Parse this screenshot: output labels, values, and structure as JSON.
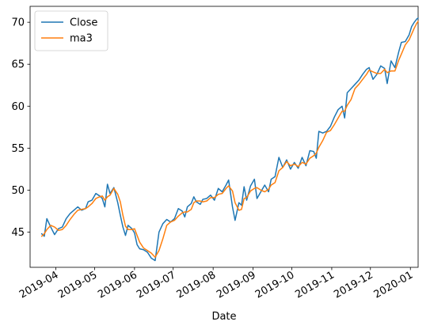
{
  "chart_data": {
    "type": "line",
    "title": "",
    "xlabel": "Date",
    "ylabel": "",
    "xlim": [
      "2019-03-12",
      "2020-01-07"
    ],
    "ylim": [
      40.8,
      71.9
    ],
    "yticks": [
      45,
      50,
      55,
      60,
      65,
      70
    ],
    "xticks": [
      {
        "date": "2019-04-01",
        "label": "2019-04"
      },
      {
        "date": "2019-05-01",
        "label": "2019-05"
      },
      {
        "date": "2019-06-01",
        "label": "2019-06"
      },
      {
        "date": "2019-07-01",
        "label": "2019-07"
      },
      {
        "date": "2019-08-01",
        "label": "2019-08"
      },
      {
        "date": "2019-09-01",
        "label": "2019-09"
      },
      {
        "date": "2019-10-01",
        "label": "2019-10"
      },
      {
        "date": "2019-11-01",
        "label": "2019-11"
      },
      {
        "date": "2019-12-01",
        "label": "2019-12"
      },
      {
        "date": "2020-01-01",
        "label": "2020-01"
      }
    ],
    "grid": false,
    "legend_position": "top-left",
    "series": [
      {
        "name": "Close",
        "color": "#1f77b4",
        "points": [
          [
            "2019-03-21",
            44.8
          ],
          [
            "2019-03-23",
            44.5
          ],
          [
            "2019-03-25",
            46.6
          ],
          [
            "2019-03-28",
            45.6
          ],
          [
            "2019-03-31",
            44.7
          ],
          [
            "2019-04-03",
            45.4
          ],
          [
            "2019-04-06",
            45.6
          ],
          [
            "2019-04-09",
            46.6
          ],
          [
            "2019-04-12",
            47.2
          ],
          [
            "2019-04-15",
            47.6
          ],
          [
            "2019-04-18",
            48.0
          ],
          [
            "2019-04-21",
            47.6
          ],
          [
            "2019-04-24",
            47.8
          ],
          [
            "2019-04-26",
            48.6
          ],
          [
            "2019-04-29",
            48.8
          ],
          [
            "2019-05-02",
            49.6
          ],
          [
            "2019-05-05",
            49.3
          ],
          [
            "2019-05-07",
            49.0
          ],
          [
            "2019-05-09",
            48.0
          ],
          [
            "2019-05-11",
            50.7
          ],
          [
            "2019-05-13",
            49.6
          ],
          [
            "2019-05-16",
            50.3
          ],
          [
            "2019-05-19",
            48.5
          ],
          [
            "2019-05-21",
            47.0
          ],
          [
            "2019-05-23",
            45.6
          ],
          [
            "2019-05-25",
            44.6
          ],
          [
            "2019-05-27",
            45.8
          ],
          [
            "2019-05-30",
            45.4
          ],
          [
            "2019-06-01",
            44.9
          ],
          [
            "2019-06-03",
            43.5
          ],
          [
            "2019-06-05",
            43.0
          ],
          [
            "2019-06-08",
            42.9
          ],
          [
            "2019-06-11",
            42.6
          ],
          [
            "2019-06-14",
            41.9
          ],
          [
            "2019-06-17",
            41.6
          ],
          [
            "2019-06-20",
            45.0
          ],
          [
            "2019-06-23",
            46.0
          ],
          [
            "2019-06-26",
            46.5
          ],
          [
            "2019-06-29",
            46.2
          ],
          [
            "2019-07-02",
            46.6
          ],
          [
            "2019-07-05",
            47.8
          ],
          [
            "2019-07-08",
            47.5
          ],
          [
            "2019-07-10",
            46.8
          ],
          [
            "2019-07-12",
            48.0
          ],
          [
            "2019-07-15",
            48.4
          ],
          [
            "2019-07-17",
            49.2
          ],
          [
            "2019-07-19",
            48.6
          ],
          [
            "2019-07-22",
            48.3
          ],
          [
            "2019-07-24",
            48.9
          ],
          [
            "2019-07-27",
            49.0
          ],
          [
            "2019-07-30",
            49.4
          ],
          [
            "2019-08-02",
            48.8
          ],
          [
            "2019-08-05",
            50.2
          ],
          [
            "2019-08-08",
            49.8
          ],
          [
            "2019-08-11",
            50.6
          ],
          [
            "2019-08-13",
            51.2
          ],
          [
            "2019-08-16",
            48.0
          ],
          [
            "2019-08-18",
            46.4
          ],
          [
            "2019-08-21",
            48.5
          ],
          [
            "2019-08-23",
            48.2
          ],
          [
            "2019-08-25",
            50.4
          ],
          [
            "2019-08-27",
            48.8
          ],
          [
            "2019-08-30",
            50.5
          ],
          [
            "2019-09-02",
            51.3
          ],
          [
            "2019-09-04",
            49.0
          ],
          [
            "2019-09-07",
            49.8
          ],
          [
            "2019-09-10",
            50.6
          ],
          [
            "2019-09-13",
            49.8
          ],
          [
            "2019-09-15",
            51.3
          ],
          [
            "2019-09-18",
            51.6
          ],
          [
            "2019-09-21",
            53.9
          ],
          [
            "2019-09-24",
            52.7
          ],
          [
            "2019-09-27",
            53.6
          ],
          [
            "2019-09-30",
            52.5
          ],
          [
            "2019-10-03",
            53.3
          ],
          [
            "2019-10-06",
            52.6
          ],
          [
            "2019-10-09",
            53.9
          ],
          [
            "2019-10-12",
            52.9
          ],
          [
            "2019-10-15",
            54.7
          ],
          [
            "2019-10-18",
            54.6
          ],
          [
            "2019-10-20",
            53.8
          ],
          [
            "2019-10-22",
            57.0
          ],
          [
            "2019-10-25",
            56.8
          ],
          [
            "2019-10-28",
            57.0
          ],
          [
            "2019-10-31",
            57.6
          ],
          [
            "2019-11-03",
            58.7
          ],
          [
            "2019-11-06",
            59.6
          ],
          [
            "2019-11-09",
            60.0
          ],
          [
            "2019-11-11",
            58.6
          ],
          [
            "2019-11-13",
            61.6
          ],
          [
            "2019-11-16",
            62.1
          ],
          [
            "2019-11-19",
            62.6
          ],
          [
            "2019-11-22",
            63.1
          ],
          [
            "2019-11-25",
            63.8
          ],
          [
            "2019-11-28",
            64.4
          ],
          [
            "2019-11-30",
            64.6
          ],
          [
            "2019-12-03",
            63.2
          ],
          [
            "2019-12-06",
            63.8
          ],
          [
            "2019-12-09",
            64.8
          ],
          [
            "2019-12-12",
            64.5
          ],
          [
            "2019-12-14",
            62.7
          ],
          [
            "2019-12-17",
            65.4
          ],
          [
            "2019-12-20",
            64.6
          ],
          [
            "2019-12-23",
            66.5
          ],
          [
            "2019-12-25",
            67.6
          ],
          [
            "2019-12-28",
            67.7
          ],
          [
            "2019-12-31",
            68.5
          ],
          [
            "2020-01-02",
            69.5
          ],
          [
            "2020-01-04",
            70.0
          ],
          [
            "2020-01-06",
            70.4
          ],
          [
            "2020-01-07",
            70.5
          ]
        ]
      },
      {
        "name": "ma3",
        "color": "#ff7f0e",
        "points": [
          [
            "2019-03-21",
            44.5
          ],
          [
            "2019-03-23",
            44.8
          ],
          [
            "2019-03-25",
            45.3
          ],
          [
            "2019-03-28",
            45.8
          ],
          [
            "2019-03-31",
            45.6
          ],
          [
            "2019-04-03",
            45.2
          ],
          [
            "2019-04-06",
            45.3
          ],
          [
            "2019-04-09",
            45.8
          ],
          [
            "2019-04-12",
            46.5
          ],
          [
            "2019-04-15",
            47.1
          ],
          [
            "2019-04-18",
            47.6
          ],
          [
            "2019-04-21",
            47.7
          ],
          [
            "2019-04-24",
            47.8
          ],
          [
            "2019-04-26",
            48.0
          ],
          [
            "2019-04-29",
            48.4
          ],
          [
            "2019-05-02",
            49.0
          ],
          [
            "2019-05-05",
            49.2
          ],
          [
            "2019-05-07",
            49.3
          ],
          [
            "2019-05-09",
            48.8
          ],
          [
            "2019-05-11",
            49.2
          ],
          [
            "2019-05-13",
            49.4
          ],
          [
            "2019-05-16",
            50.2
          ],
          [
            "2019-05-19",
            49.5
          ],
          [
            "2019-05-21",
            48.6
          ],
          [
            "2019-05-23",
            47.0
          ],
          [
            "2019-05-25",
            45.7
          ],
          [
            "2019-05-27",
            45.3
          ],
          [
            "2019-05-30",
            45.3
          ],
          [
            "2019-06-01",
            45.4
          ],
          [
            "2019-06-03",
            44.6
          ],
          [
            "2019-06-05",
            43.8
          ],
          [
            "2019-06-08",
            43.1
          ],
          [
            "2019-06-11",
            42.8
          ],
          [
            "2019-06-14",
            42.5
          ],
          [
            "2019-06-17",
            42.0
          ],
          [
            "2019-06-20",
            42.8
          ],
          [
            "2019-06-23",
            44.2
          ],
          [
            "2019-06-26",
            45.8
          ],
          [
            "2019-06-29",
            46.2
          ],
          [
            "2019-07-02",
            46.4
          ],
          [
            "2019-07-05",
            46.9
          ],
          [
            "2019-07-08",
            47.3
          ],
          [
            "2019-07-10",
            47.4
          ],
          [
            "2019-07-12",
            47.4
          ],
          [
            "2019-07-15",
            47.7
          ],
          [
            "2019-07-17",
            48.5
          ],
          [
            "2019-07-19",
            48.7
          ],
          [
            "2019-07-22",
            48.7
          ],
          [
            "2019-07-24",
            48.6
          ],
          [
            "2019-07-27",
            48.7
          ],
          [
            "2019-07-30",
            49.1
          ],
          [
            "2019-08-02",
            49.1
          ],
          [
            "2019-08-05",
            49.5
          ],
          [
            "2019-08-08",
            49.6
          ],
          [
            "2019-08-11",
            50.2
          ],
          [
            "2019-08-13",
            50.5
          ],
          [
            "2019-08-16",
            49.9
          ],
          [
            "2019-08-18",
            48.5
          ],
          [
            "2019-08-21",
            47.6
          ],
          [
            "2019-08-23",
            47.7
          ],
          [
            "2019-08-25",
            49.0
          ],
          [
            "2019-08-27",
            49.1
          ],
          [
            "2019-08-30",
            49.9
          ],
          [
            "2019-09-02",
            50.2
          ],
          [
            "2019-09-04",
            50.3
          ],
          [
            "2019-09-07",
            50.0
          ],
          [
            "2019-09-10",
            49.8
          ],
          [
            "2019-09-13",
            50.1
          ],
          [
            "2019-09-15",
            50.6
          ],
          [
            "2019-09-18",
            50.9
          ],
          [
            "2019-09-21",
            52.3
          ],
          [
            "2019-09-24",
            52.7
          ],
          [
            "2019-09-27",
            53.4
          ],
          [
            "2019-09-30",
            52.9
          ],
          [
            "2019-10-03",
            53.1
          ],
          [
            "2019-10-06",
            52.8
          ],
          [
            "2019-10-09",
            53.3
          ],
          [
            "2019-10-12",
            53.1
          ],
          [
            "2019-10-15",
            53.8
          ],
          [
            "2019-10-18",
            54.1
          ],
          [
            "2019-10-20",
            54.4
          ],
          [
            "2019-10-22",
            55.1
          ],
          [
            "2019-10-25",
            55.9
          ],
          [
            "2019-10-28",
            56.9
          ],
          [
            "2019-10-31",
            57.1
          ],
          [
            "2019-11-03",
            57.8
          ],
          [
            "2019-11-06",
            58.6
          ],
          [
            "2019-11-09",
            59.4
          ],
          [
            "2019-11-11",
            59.4
          ],
          [
            "2019-11-13",
            60.1
          ],
          [
            "2019-11-16",
            60.8
          ],
          [
            "2019-11-19",
            62.1
          ],
          [
            "2019-11-22",
            62.6
          ],
          [
            "2019-11-25",
            63.2
          ],
          [
            "2019-11-28",
            63.8
          ],
          [
            "2019-11-30",
            64.3
          ],
          [
            "2019-12-03",
            64.1
          ],
          [
            "2019-12-06",
            63.9
          ],
          [
            "2019-12-09",
            63.9
          ],
          [
            "2019-12-12",
            64.4
          ],
          [
            "2019-12-14",
            64.0
          ],
          [
            "2019-12-17",
            64.2
          ],
          [
            "2019-12-20",
            64.2
          ],
          [
            "2019-12-23",
            65.5
          ],
          [
            "2019-12-25",
            66.2
          ],
          [
            "2019-12-28",
            67.3
          ],
          [
            "2019-12-31",
            67.9
          ],
          [
            "2020-01-02",
            68.6
          ],
          [
            "2020-01-04",
            69.3
          ],
          [
            "2020-01-06",
            69.9
          ],
          [
            "2020-01-07",
            70.1
          ]
        ]
      }
    ]
  }
}
